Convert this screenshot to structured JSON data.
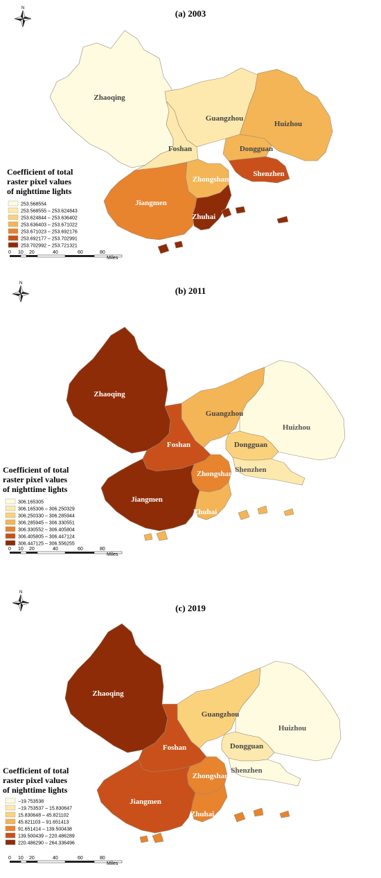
{
  "north_label": "N",
  "scale_bar": {
    "ticks": [
      "0",
      "10",
      "20",
      "40",
      "60",
      "80"
    ],
    "unit": "Miles"
  },
  "panels": [
    {
      "title": "(a) 2003",
      "legend_title": [
        "Coefficient of total",
        "raster pixel values",
        "of nighttime lights"
      ],
      "legend_classes": [
        "253.568554",
        "253.568555 – 253.624843",
        "253.624844 – 253.636402",
        "253.636403 – 253.671022",
        "253.671023 – 253.692176",
        "253.692177 – 253.702991",
        "253.702992 – 253.721321"
      ],
      "cities": {
        "zhaoqing": "Zhaoqing",
        "guangzhou": "Guangzhou",
        "huizhou": "Huizhou",
        "foshan": "Foshan",
        "dongguan": "Dongguan",
        "shenzhen": "Shenzhen",
        "zhongshan": "Zhongshan",
        "jiangmen": "Jiangmen",
        "zhuhai": "Zhuhai"
      },
      "fill_class": {
        "zhaoqing": 0,
        "guangzhou": 1,
        "huizhou": 3,
        "foshan": 1,
        "dongguan": 3,
        "shenzhen": 5,
        "zhongshan": 3,
        "jiangmen": 4,
        "zhuhai": 6
      }
    },
    {
      "title": "(b) 2011",
      "legend_title": [
        "Coefficient of total",
        "raster pixel values",
        "of nighttime lights"
      ],
      "legend_classes": [
        "306.165305",
        "306.165306 – 306.250329",
        "306.250330 – 306.285944",
        "306.285945 – 306.330551",
        "306.330552 – 306.405804",
        "306.405805 – 306.447124",
        "306.447125 – 306.556255"
      ],
      "cities": {
        "zhaoqing": "Zhaoqing",
        "guangzhou": "Guangzhou",
        "huizhou": "Huizhou",
        "foshan": "Foshan",
        "dongguan": "Dongguan",
        "shenzhen": "Shenzhen",
        "zhongshan": "Zhongshan",
        "jiangmen": "Jiangmen",
        "zhuhai": "Zhuhai"
      },
      "fill_class": {
        "zhaoqing": 6,
        "guangzhou": 3,
        "huizhou": 0,
        "foshan": 5,
        "dongguan": 2,
        "shenzhen": 1,
        "zhongshan": 4,
        "jiangmen": 6,
        "zhuhai": 3
      }
    },
    {
      "title": "(c) 2019",
      "legend_title": [
        "Coefficient of total",
        "raster pixel values",
        "of nighttime lights"
      ],
      "legend_classes": [
        "−19.753538",
        "−19.753537 – 15.830647",
        "15.830648 – 45.821102",
        "45.821103 – 91.651413",
        "91.651414 – 139.500438",
        "139.500439 – 220.486289",
        "220.486290 – 264.336496"
      ],
      "cities": {
        "zhaoqing": "Zhaoqing",
        "guangzhou": "Guangzhou",
        "huizhou": "Huizhou",
        "foshan": "Foshan",
        "dongguan": "Dongguan",
        "shenzhen": "Shenzhen",
        "zhongshan": "Zhongshan",
        "jiangmen": "Jiangmen",
        "zhuhai": "Zhuhai"
      },
      "fill_class": {
        "zhaoqing": 6,
        "guangzhou": 2,
        "huizhou": 0,
        "foshan": 5,
        "dongguan": 1,
        "shenzhen": 0,
        "zhongshan": 4,
        "jiangmen": 5,
        "zhuhai": 4
      }
    }
  ],
  "palette": [
    "#fffbe0",
    "#fde9ad",
    "#fbd27c",
    "#f4b556",
    "#e8832e",
    "#c9501a",
    "#8e2c07"
  ]
}
